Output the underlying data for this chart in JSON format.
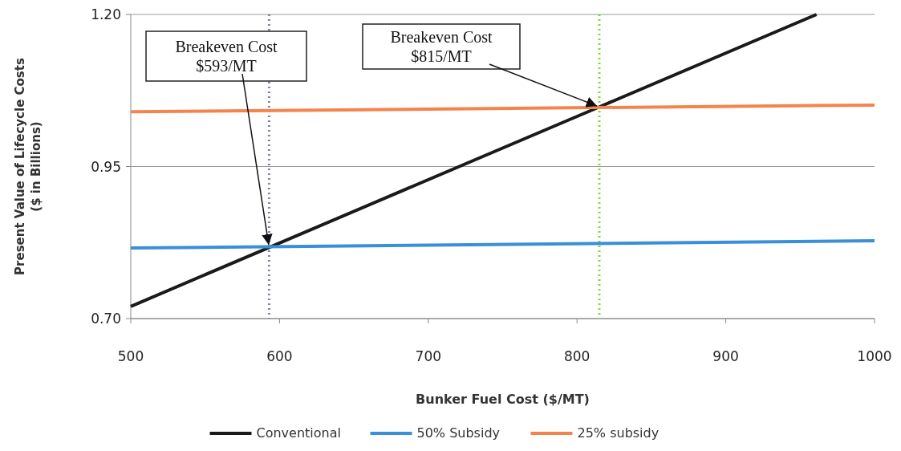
{
  "chart_data": {
    "type": "line",
    "xlabel": "Bunker Fuel Cost ($/MT)",
    "ylabel": "Present Value of Lifecycle  Costs\n($ in Billions)",
    "xlim": [
      500,
      1000
    ],
    "xticks": [
      500,
      600,
      700,
      800,
      900,
      1000
    ],
    "ylim": [
      0.7,
      1.2
    ],
    "yticks": [
      {
        "value": 0.7,
        "label": "0.70"
      },
      {
        "value": 0.95,
        "label": "0.95"
      },
      {
        "value": 1.2,
        "label": "1.20"
      }
    ],
    "grid": "y",
    "legend": "bottom",
    "marker": "none",
    "line_style": "solid",
    "series": [
      {
        "name": "Conventional",
        "color": "#1a1a1a",
        "x": [
          500,
          593,
          815,
          961
        ],
        "values": [
          0.72,
          0.817,
          1.048,
          1.2
        ]
      },
      {
        "name": "50% Subsidy",
        "color": "#3a8fd9",
        "x": [
          500,
          1000
        ],
        "values": [
          0.816,
          0.828
        ]
      },
      {
        "name": "25% subsidy",
        "color": "#f5844c",
        "x": [
          500,
          1000
        ],
        "values": [
          1.04,
          1.051
        ]
      }
    ],
    "ref_lines": [
      {
        "axis": "x",
        "value": 593,
        "color": "#8a7fa8",
        "line_style": "dotted"
      },
      {
        "axis": "x",
        "value": 815,
        "color": "#7fd84a",
        "line_style": "dotted"
      }
    ],
    "annotations": [
      {
        "text": "Breakeven Cost\n$593/MT",
        "x": 593,
        "y": 0.817
      },
      {
        "text": "Breakeven Cost\n$815/MT",
        "x": 815,
        "y": 1.048
      }
    ]
  }
}
